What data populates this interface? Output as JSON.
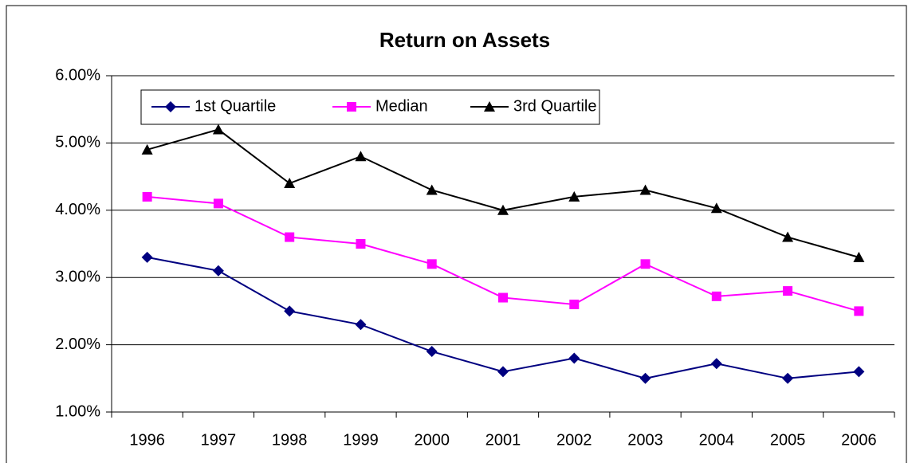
{
  "chart_data": {
    "type": "line",
    "title": "Return on Assets",
    "categories": [
      "1996",
      "1997",
      "1998",
      "1999",
      "2000",
      "2001",
      "2002",
      "2003",
      "2004",
      "2005",
      "2006"
    ],
    "series": [
      {
        "name": "1st Quartile",
        "color": "#000080",
        "marker": "diamond",
        "values": [
          3.3,
          3.1,
          2.5,
          2.3,
          1.9,
          1.6,
          1.8,
          1.5,
          1.72,
          1.5,
          1.6
        ]
      },
      {
        "name": "Median",
        "color": "#ff00ff",
        "marker": "square",
        "values": [
          4.2,
          4.1,
          3.6,
          3.5,
          3.2,
          2.7,
          2.6,
          3.2,
          2.72,
          2.8,
          2.5
        ]
      },
      {
        "name": "3rd Quartile",
        "color": "#000000",
        "marker": "triangle",
        "values": [
          4.9,
          5.2,
          4.4,
          4.8,
          4.3,
          4.0,
          4.2,
          4.3,
          4.03,
          3.6,
          3.3
        ]
      }
    ],
    "ylim": [
      1,
      6
    ],
    "yticks": [
      {
        "value": 1,
        "label": "1.00%"
      },
      {
        "value": 2,
        "label": "2.00%"
      },
      {
        "value": 3,
        "label": "3.00%"
      },
      {
        "value": 4,
        "label": "4.00%"
      },
      {
        "value": 5,
        "label": "5.00%"
      },
      {
        "value": 6,
        "label": "6.00%"
      }
    ],
    "grid": true
  }
}
